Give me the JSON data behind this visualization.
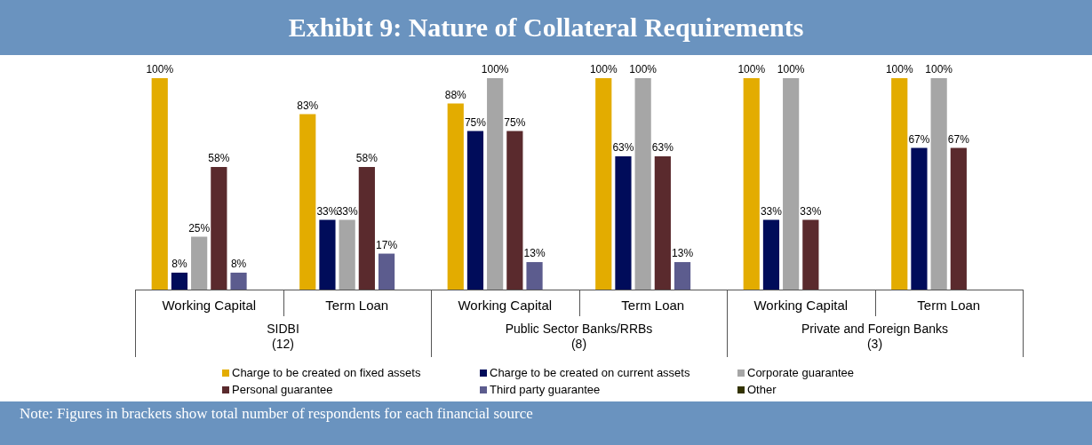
{
  "chart_data": {
    "type": "bar",
    "title": "Exhibit 9: Nature of Collateral Requirements",
    "categories": [
      "Working Capital",
      "Term Loan",
      "Working Capital",
      "Term Loan",
      "Working Capital",
      "Term Loan"
    ],
    "series": [
      {
        "name": "Charge to be created on fixed assets",
        "color": "#e3ac00",
        "values": [
          100,
          83,
          88,
          100,
          100,
          100
        ],
        "value_labels": [
          "100%",
          "83%",
          "88%",
          "100%",
          "100%",
          "100%"
        ]
      },
      {
        "name": "Charge to be created on current assets",
        "color": "#000c5a",
        "values": [
          8,
          33,
          75,
          63,
          33,
          67
        ],
        "value_labels": [
          "8%",
          "33%",
          "75%",
          "63%",
          "33%",
          "67%"
        ]
      },
      {
        "name": "Corporate guarantee",
        "color": "#a6a6a6",
        "values": [
          25,
          33,
          100,
          100,
          100,
          100
        ],
        "value_labels": [
          "25%",
          "33%",
          "100%",
          "100%",
          "100%",
          "100%"
        ]
      },
      {
        "name": "Personal guarantee",
        "color": "#5a2a2d",
        "values": [
          58,
          58,
          75,
          63,
          33,
          67
        ],
        "value_labels": [
          "58%",
          "58%",
          "75%",
          "63%",
          "33%",
          "67%"
        ]
      },
      {
        "name": "Third party guarantee",
        "color": "#5c5c8e",
        "values": [
          8,
          17,
          13,
          13,
          null,
          null
        ],
        "value_labels": [
          "8%",
          "17%",
          "13%",
          "13%",
          null,
          null
        ]
      },
      {
        "name": "Other",
        "color": "#333300",
        "values": [
          null,
          null,
          null,
          null,
          null,
          null
        ],
        "value_labels": [
          null,
          null,
          null,
          null,
          null,
          null
        ]
      }
    ],
    "ylim": [
      0,
      100
    ],
    "tick_labels": "x",
    "grid": false,
    "legend": "bottom",
    "annotations": [
      "SIDBI\n(12)",
      "Public Sector Banks/RRBs\n(8)",
      "Private and Foreign Banks\n(3)",
      "Note: Figures in brackets show total number of respondents for each financial source"
    ]
  }
}
